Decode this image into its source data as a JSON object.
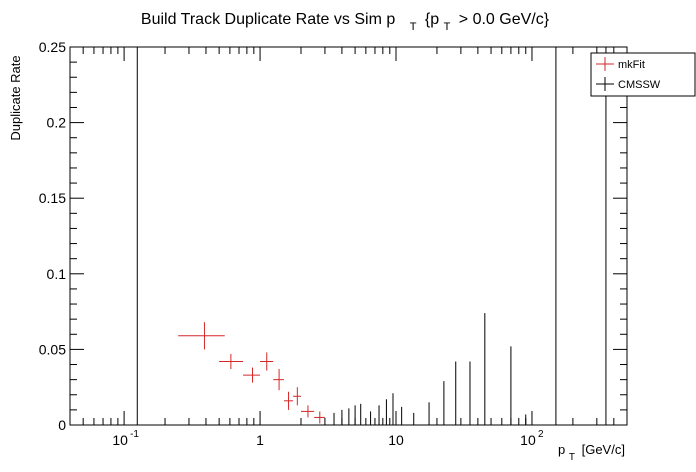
{
  "chart_data": {
    "type": "scatter",
    "title": {
      "prefix": "Build Track Duplicate Rate vs Sim p",
      "sub1": "T",
      "mid": "{p",
      "sub2": "T",
      "suffix": "> 0.0 GeV/c}"
    },
    "xlabel": {
      "main": "p",
      "sub": "T",
      "unit": "[GeV/c]"
    },
    "ylabel": "Duplicate Rate",
    "x_scale": "log",
    "xlim": [
      0.04,
      500
    ],
    "ylim": [
      0,
      0.25
    ],
    "x_tick_labels": [
      {
        "value": 0.1,
        "base": "10",
        "exp": "-1"
      },
      {
        "value": 1,
        "base": "1",
        "exp": ""
      },
      {
        "value": 10,
        "base": "10",
        "exp": ""
      },
      {
        "value": 100,
        "base": "10",
        "exp": "2"
      }
    ],
    "y_ticks": [
      0,
      0.05,
      0.1,
      0.15,
      0.2,
      0.25
    ],
    "y_tick_labels": [
      "0",
      "0.05",
      "0.1",
      "0.15",
      "0.2",
      "0.25"
    ],
    "legend": {
      "position": "top-right",
      "entries": [
        "mkFit",
        "CMSSW"
      ]
    },
    "series": [
      {
        "name": "mkFit",
        "color": "#d62728",
        "points": [
          {
            "x": 0.39,
            "x_lo": 0.25,
            "x_hi": 0.55,
            "y": 0.059,
            "y_err": 0.009
          },
          {
            "x": 0.61,
            "x_lo": 0.5,
            "x_hi": 0.75,
            "y": 0.042,
            "y_err": 0.005
          },
          {
            "x": 0.88,
            "x_lo": 0.75,
            "x_hi": 1.0,
            "y": 0.033,
            "y_err": 0.005
          },
          {
            "x": 1.12,
            "x_lo": 1.0,
            "x_hi": 1.25,
            "y": 0.042,
            "y_err": 0.006
          },
          {
            "x": 1.38,
            "x_lo": 1.25,
            "x_hi": 1.5,
            "y": 0.03,
            "y_err": 0.007
          },
          {
            "x": 1.62,
            "x_lo": 1.5,
            "x_hi": 1.75,
            "y": 0.016,
            "y_err": 0.006
          },
          {
            "x": 1.88,
            "x_lo": 1.75,
            "x_hi": 2.0,
            "y": 0.019,
            "y_err": 0.006
          },
          {
            "x": 2.25,
            "x_lo": 2.0,
            "x_hi": 2.5,
            "y": 0.009,
            "y_err": 0.004
          },
          {
            "x": 2.75,
            "x_lo": 2.5,
            "x_hi": 3.0,
            "y": 0.005,
            "y_err": 0.004
          }
        ]
      },
      {
        "name": "CMSSW",
        "color": "#000000",
        "points": [
          {
            "x": 0.125,
            "y": 0.125,
            "y_err": 0.125
          },
          {
            "x": 3.5,
            "y": 0.004,
            "y_err": 0.004
          },
          {
            "x": 4.0,
            "y": 0.005,
            "y_err": 0.005
          },
          {
            "x": 4.5,
            "y": 0.0055,
            "y_err": 0.0055
          },
          {
            "x": 5.0,
            "y": 0.0065,
            "y_err": 0.0065
          },
          {
            "x": 5.5,
            "y": 0.007,
            "y_err": 0.007
          },
          {
            "x": 6.5,
            "y": 0.0045,
            "y_err": 0.0045
          },
          {
            "x": 7.5,
            "y": 0.0065,
            "y_err": 0.0065
          },
          {
            "x": 8.5,
            "y": 0.0085,
            "y_err": 0.0085
          },
          {
            "x": 9.5,
            "y": 0.0105,
            "y_err": 0.0105
          },
          {
            "x": 11.0,
            "y": 0.006,
            "y_err": 0.006
          },
          {
            "x": 13.5,
            "y": 0.004,
            "y_err": 0.004
          },
          {
            "x": 17.5,
            "y": 0.0075,
            "y_err": 0.0075
          },
          {
            "x": 22.5,
            "y": 0.0145,
            "y_err": 0.0145
          },
          {
            "x": 27.5,
            "y": 0.021,
            "y_err": 0.021
          },
          {
            "x": 35.0,
            "y": 0.021,
            "y_err": 0.021
          },
          {
            "x": 45.0,
            "y": 0.037,
            "y_err": 0.037
          },
          {
            "x": 70.0,
            "y": 0.026,
            "y_err": 0.026
          },
          {
            "x": 90.0,
            "y": 0.0035,
            "y_err": 0.0035
          },
          {
            "x": 150.0,
            "y": 0.125,
            "y_err": 0.125
          },
          {
            "x": 350.0,
            "y": 0.125,
            "y_err": 0.125
          }
        ]
      }
    ]
  }
}
